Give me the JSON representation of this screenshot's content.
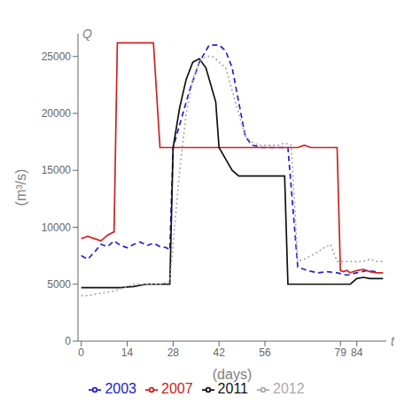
{
  "chart_data": {
    "type": "line",
    "xlabel": "(days)",
    "ylabel": "(m³/s)",
    "annotations": [
      {
        "text": "t"
      },
      {
        "text": "Q"
      }
    ],
    "xlim": [
      -1,
      93
    ],
    "ylim": [
      0,
      27000
    ],
    "xticks": [
      0,
      14,
      28,
      42,
      56,
      79,
      84
    ],
    "yticks": [
      0,
      5000,
      10000,
      15000,
      20000,
      25000
    ],
    "grid": false,
    "legend": "bottom",
    "series": [
      {
        "name": "2003",
        "color": "#2222cc",
        "line_style": "dashed",
        "x": [
          0,
          2,
          4,
          6,
          8,
          10,
          12,
          14,
          16,
          18,
          20,
          22,
          24,
          26,
          27,
          28,
          30,
          33,
          36,
          39,
          42,
          44,
          46,
          48,
          50,
          52,
          54,
          55,
          57,
          60,
          63,
          66,
          69,
          72,
          75,
          78,
          81,
          84,
          87,
          90
        ],
        "values": [
          7500,
          7200,
          7800,
          8500,
          8300,
          8800,
          8400,
          8200,
          8500,
          8700,
          8400,
          8600,
          8300,
          8200,
          8000,
          17000,
          19000,
          22000,
          24500,
          26000,
          26000,
          25500,
          24000,
          21000,
          18000,
          17200,
          17100,
          17000,
          17000,
          17000,
          17000,
          6500,
          6200,
          6000,
          6100,
          6000,
          5800,
          6000,
          6200,
          6100
        ]
      },
      {
        "name": "2007",
        "color": "#cc2222",
        "line_style": "solid",
        "x": [
          0,
          1,
          2,
          4,
          6,
          8,
          10,
          11,
          12,
          13,
          14,
          15,
          16,
          17,
          18,
          20,
          22,
          24,
          25,
          26,
          28,
          30,
          32,
          35,
          38,
          40,
          42,
          44,
          46,
          50,
          54,
          56,
          58,
          60,
          62,
          64,
          66,
          68,
          70,
          72,
          74,
          76,
          78,
          79,
          80,
          81,
          82,
          84,
          86,
          88,
          90,
          92
        ],
        "values": [
          9000,
          9100,
          9200,
          9000,
          8800,
          9300,
          9600,
          26200,
          26200,
          26200,
          26200,
          26200,
          26200,
          26200,
          26200,
          26200,
          26200,
          17000,
          17000,
          17000,
          17000,
          17000,
          17000,
          17000,
          17000,
          17000,
          17000,
          17000,
          17000,
          17000,
          17000,
          17000,
          17000,
          17000,
          17000,
          17000,
          17000,
          17200,
          17000,
          17000,
          17000,
          17000,
          17000,
          6200,
          6100,
          6200,
          6000,
          6200,
          6300,
          6100,
          6000,
          6000
        ]
      },
      {
        "name": "2011",
        "color": "#111111",
        "line_style": "solid",
        "x": [
          0,
          2,
          4,
          6,
          8,
          10,
          12,
          14,
          16,
          18,
          20,
          22,
          24,
          26,
          27,
          28,
          30,
          32,
          34,
          36,
          38,
          40,
          41,
          42,
          44,
          46,
          48,
          50,
          52,
          54,
          56,
          58,
          60,
          62,
          63,
          64,
          66,
          68,
          70,
          72,
          74,
          76,
          78,
          80,
          82,
          84,
          86,
          88,
          90,
          92
        ],
        "values": [
          4700,
          4700,
          4700,
          4700,
          4700,
          4700,
          4700,
          4750,
          4800,
          4900,
          5000,
          5000,
          5000,
          5000,
          5000,
          17000,
          20500,
          23000,
          24500,
          24800,
          24000,
          22000,
          21000,
          17000,
          16000,
          15000,
          14500,
          14500,
          14500,
          14500,
          14500,
          14500,
          14500,
          14500,
          5000,
          5000,
          5000,
          5000,
          5000,
          5000,
          5000,
          5000,
          5000,
          5000,
          5000,
          5500,
          5600,
          5500,
          5500,
          5500
        ]
      },
      {
        "name": "2012",
        "color": "#aaaaaa",
        "line_style": "dotted",
        "x": [
          0,
          2,
          4,
          6,
          8,
          10,
          12,
          14,
          16,
          18,
          20,
          22,
          24,
          26,
          27,
          28,
          30,
          32,
          34,
          36,
          38,
          39,
          40,
          41,
          42,
          44,
          46,
          48,
          50,
          52,
          54,
          56,
          58,
          60,
          62,
          64,
          66,
          68,
          70,
          72,
          74,
          76,
          78,
          80,
          82,
          84,
          86,
          88,
          90,
          92
        ],
        "values": [
          4000,
          4000,
          4100,
          4200,
          4300,
          4400,
          4600,
          4800,
          5000,
          5000,
          5000,
          5000,
          5000,
          5200,
          5200,
          8500,
          15000,
          20000,
          23000,
          24500,
          25000,
          25000,
          25000,
          24800,
          24500,
          24000,
          22000,
          20000,
          18000,
          17500,
          17200,
          17200,
          17200,
          17200,
          17400,
          17200,
          7000,
          7200,
          7500,
          7800,
          8200,
          8500,
          7000,
          7000,
          7000,
          7000,
          7000,
          7200,
          7000,
          7000
        ]
      }
    ]
  }
}
